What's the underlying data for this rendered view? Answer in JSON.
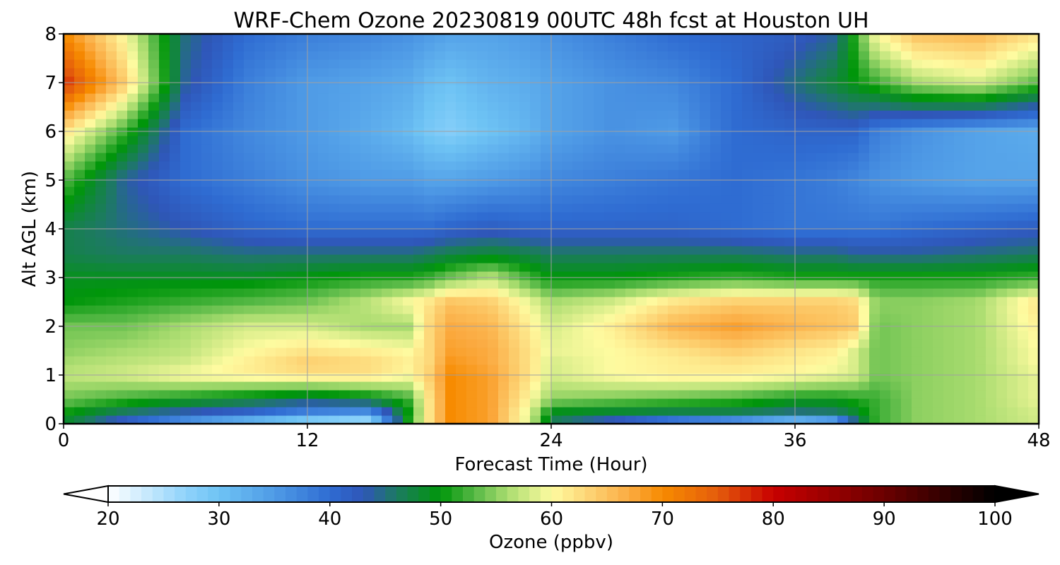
{
  "chart_data": {
    "type": "heatmap",
    "title": "WRF-Chem Ozone  20230819 00UTC 48h fcst at Houston UH",
    "xlabel": "Forecast Time (Hour)",
    "ylabel": "Alt AGL (km)",
    "x_ticks": [
      "0",
      "12",
      "24",
      "36",
      "48"
    ],
    "y_ticks": [
      "0",
      "1",
      "2",
      "3",
      "4",
      "5",
      "6",
      "7",
      "8"
    ],
    "xlim": [
      0,
      48
    ],
    "ylim": [
      0,
      8
    ],
    "grid": true,
    "x_hours": [
      0,
      3,
      6,
      9,
      12,
      15,
      17,
      18,
      19,
      21,
      23,
      24,
      27,
      30,
      33,
      36,
      38,
      39,
      40,
      42,
      45,
      48
    ],
    "y_km": [
      0,
      0.2,
      0.5,
      1,
      1.25,
      1.5,
      2,
      2.5,
      3,
      3.5,
      4,
      5,
      6,
      7,
      8
    ],
    "z": [
      [
        48,
        40,
        33,
        28,
        24,
        22,
        52,
        62,
        70,
        68,
        58,
        46,
        40,
        34,
        30,
        24,
        28,
        44,
        52,
        55,
        56,
        58
      ],
      [
        50,
        45,
        42,
        40,
        36,
        34,
        50,
        62,
        70,
        68,
        58,
        48,
        47,
        46,
        46,
        44,
        45,
        48,
        52,
        55,
        56,
        58
      ],
      [
        54,
        52,
        50,
        48,
        46,
        48,
        52,
        62,
        70,
        68,
        60,
        55,
        54,
        53,
        52,
        50,
        50,
        51,
        52,
        55,
        56,
        59
      ],
      [
        57,
        58,
        60,
        61,
        62,
        62,
        60,
        64,
        70,
        68,
        62,
        58,
        60,
        61,
        61,
        60,
        59,
        58,
        54,
        55,
        56,
        59
      ],
      [
        56,
        57,
        58,
        61,
        64,
        63,
        61,
        63,
        69,
        67,
        62,
        58,
        60,
        61,
        62,
        61,
        60,
        58,
        54,
        55,
        56,
        60
      ],
      [
        55,
        56,
        57,
        60,
        62,
        61,
        60,
        63,
        68,
        67,
        62,
        59,
        60,
        62,
        64,
        62,
        61,
        58,
        54,
        55,
        56,
        60
      ],
      [
        54,
        54,
        56,
        58,
        58,
        56,
        56,
        63,
        67,
        66,
        61,
        58,
        61,
        66,
        68,
        66,
        65,
        64,
        54,
        55,
        56,
        61
      ],
      [
        50,
        51,
        52,
        53,
        54,
        57,
        60,
        62,
        65,
        64,
        59,
        56,
        58,
        62,
        64,
        64,
        64,
        63,
        55,
        55,
        56,
        62
      ],
      [
        49,
        49,
        49,
        49,
        50,
        51,
        51,
        52,
        54,
        57,
        52,
        50,
        50,
        51,
        52,
        51,
        51,
        51,
        51,
        51,
        51,
        52
      ],
      [
        47,
        46,
        46,
        45,
        45,
        45,
        45,
        46,
        47,
        48,
        47,
        46,
        46,
        46,
        46,
        45,
        45,
        44,
        44,
        44,
        45,
        46
      ],
      [
        47,
        45,
        43,
        41,
        40,
        40,
        40,
        40,
        41,
        42,
        41,
        41,
        41,
        41,
        40,
        39,
        39,
        39,
        39,
        40,
        41,
        42
      ],
      [
        53,
        44,
        40,
        38,
        36,
        35,
        35,
        34,
        34,
        35,
        36,
        37,
        38,
        39,
        40,
        39,
        38,
        37,
        36,
        35,
        34,
        34
      ],
      [
        62,
        52,
        40,
        37,
        35,
        33,
        31,
        29,
        28,
        30,
        32,
        34,
        36,
        35,
        40,
        41,
        41,
        41,
        38,
        36,
        34,
        33
      ],
      [
        78,
        64,
        44,
        38,
        35,
        34,
        33,
        31,
        30,
        32,
        33,
        34,
        36,
        37,
        40,
        45,
        48,
        50,
        52,
        56,
        58,
        53
      ],
      [
        70,
        60,
        45,
        40,
        38,
        37,
        36,
        35,
        34,
        34,
        35,
        36,
        38,
        40,
        41,
        42,
        44,
        52,
        60,
        65,
        66,
        62
      ]
    ]
  },
  "colorbar": {
    "label": "Ozone  (ppbv)",
    "ticks": [
      "20",
      "30",
      "40",
      "50",
      "60",
      "70",
      "80",
      "90",
      "100"
    ],
    "min": 20,
    "max": 100,
    "extend": "both",
    "color_stops": [
      {
        "v": 20,
        "c": "#ffffff"
      },
      {
        "v": 27,
        "c": "#8fd3fb"
      },
      {
        "v": 30,
        "c": "#6ec3f4"
      },
      {
        "v": 35,
        "c": "#4f9be6"
      },
      {
        "v": 40,
        "c": "#2f6cd2"
      },
      {
        "v": 43,
        "c": "#2f56b8"
      },
      {
        "v": 46,
        "c": "#1d7a62"
      },
      {
        "v": 50,
        "c": "#00960a"
      },
      {
        "v": 53,
        "c": "#55b845"
      },
      {
        "v": 56,
        "c": "#a9dc6f"
      },
      {
        "v": 60,
        "c": "#fefba0"
      },
      {
        "v": 63,
        "c": "#fdd87a"
      },
      {
        "v": 67,
        "c": "#fbab42"
      },
      {
        "v": 70,
        "c": "#f78b00"
      },
      {
        "v": 75,
        "c": "#e45c0c"
      },
      {
        "v": 80,
        "c": "#c80000"
      },
      {
        "v": 90,
        "c": "#6b0000"
      },
      {
        "v": 100,
        "c": "#000000"
      }
    ]
  }
}
